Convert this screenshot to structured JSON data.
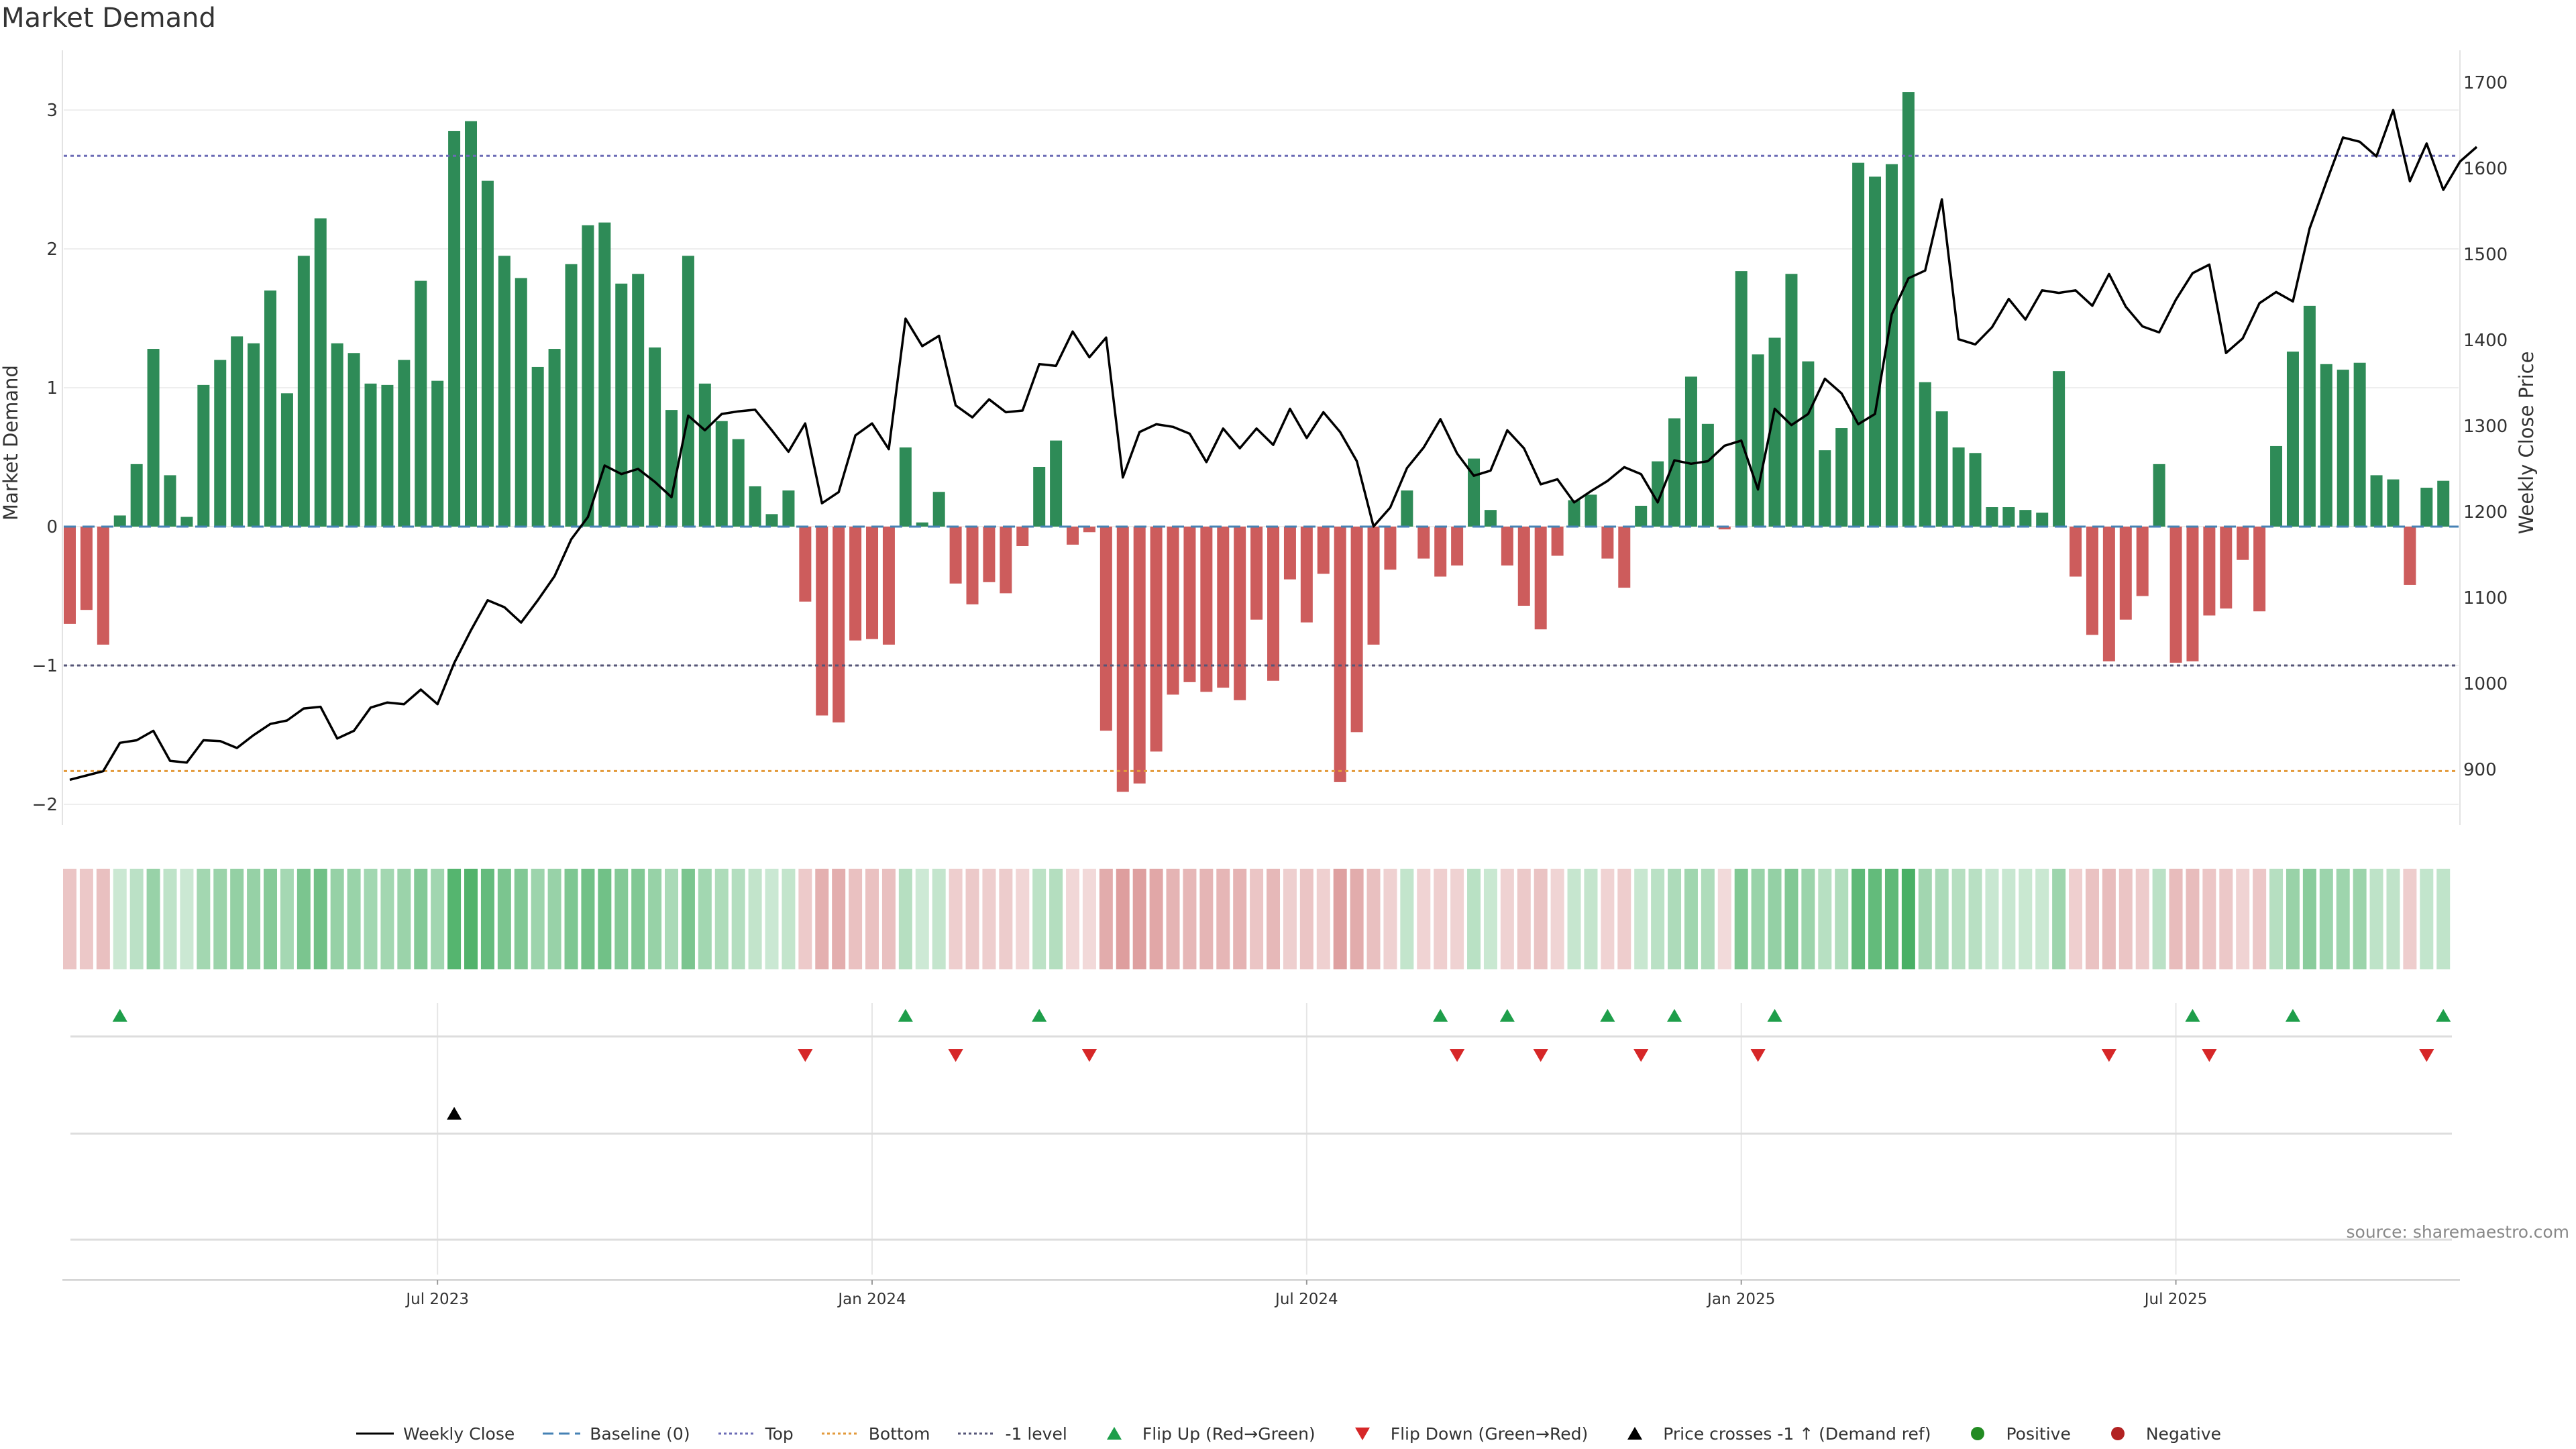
{
  "chart_data": {
    "type": "bar",
    "title": "Market Demand",
    "ylabel": "Market Demand",
    "y2label": "Weekly Close Price",
    "ylim": [
      -2.2,
      3.4
    ],
    "y2lim": [
      850,
      1710
    ],
    "yticks": [
      "3",
      "2",
      "1",
      "0",
      "−1",
      "−2"
    ],
    "yticks_values": [
      3,
      2,
      1,
      0,
      -1,
      -2
    ],
    "y2ticks": [
      "1700",
      "1600",
      "1500",
      "1400",
      "1300",
      "1200",
      "1100",
      "1000",
      "900"
    ],
    "y2ticks_values": [
      1700,
      1600,
      1500,
      1400,
      1300,
      1200,
      1100,
      1000,
      900
    ],
    "xticks": [
      "Jul 2023",
      "Jan 2024",
      "Jul 2024",
      "Jan 2025",
      "Jul 2025"
    ],
    "xticks_index": [
      22,
      48,
      74,
      100,
      126
    ],
    "reference_lines": {
      "top": 2.67,
      "bottom": -1.76,
      "minus_one": -1.0,
      "baseline": 0
    },
    "demand": [
      -0.7,
      -0.6,
      -0.85,
      0.08,
      0.45,
      1.28,
      0.37,
      0.07,
      1.02,
      1.2,
      1.37,
      1.32,
      1.7,
      0.96,
      1.95,
      2.22,
      1.32,
      1.25,
      1.03,
      1.02,
      1.2,
      1.77,
      1.05,
      2.85,
      2.92,
      2.49,
      1.95,
      1.79,
      1.15,
      1.28,
      1.89,
      2.17,
      2.19,
      1.75,
      1.82,
      1.29,
      0.84,
      1.95,
      1.03,
      0.76,
      0.63,
      0.29,
      0.09,
      0.26,
      -0.54,
      -1.36,
      -1.41,
      -0.82,
      -0.81,
      -0.85,
      0.57,
      0.03,
      0.25,
      -0.41,
      -0.56,
      -0.4,
      -0.48,
      -0.14,
      0.43,
      0.62,
      -0.13,
      -0.04,
      -1.47,
      -1.91,
      -1.85,
      -1.62,
      -1.21,
      -1.12,
      -1.19,
      -1.16,
      -1.25,
      -0.67,
      -1.11,
      -0.38,
      -0.69,
      -0.34,
      -1.84,
      -1.48,
      -0.85,
      -0.31,
      0.26,
      -0.23,
      -0.36,
      -0.28,
      0.49,
      0.12,
      -0.28,
      -0.57,
      -0.74,
      -0.21,
      0.19,
      0.23,
      -0.23,
      -0.44,
      0.15,
      0.47,
      0.78,
      1.08,
      0.74,
      -0.02,
      1.84,
      1.24,
      1.36,
      1.82,
      1.19,
      0.55,
      0.71,
      2.62,
      2.52,
      2.61,
      3.13,
      1.04,
      0.83,
      0.57,
      0.53,
      0.14,
      0.14,
      0.12,
      0.1,
      1.12,
      -0.36,
      -0.78,
      -0.97,
      -0.67,
      -0.5,
      0.45,
      -0.98,
      -0.97,
      -0.64,
      -0.59,
      -0.24,
      -0.61,
      0.58,
      1.26,
      1.59,
      1.17,
      1.13,
      1.18,
      0.37,
      0.34,
      -0.42,
      0.28,
      0.33
    ],
    "price": [
      888,
      893,
      898,
      931,
      934,
      945,
      910,
      908,
      934,
      933,
      925,
      940,
      953,
      957,
      971,
      973,
      936,
      945,
      972,
      978,
      976,
      993,
      976,
      1024,
      1062,
      1097,
      1089,
      1071,
      1097,
      1125,
      1168,
      1194,
      1254,
      1244,
      1250,
      1235,
      1217,
      1312,
      1295,
      1314,
      1317,
      1319,
      1295,
      1270,
      1303,
      1210,
      1223,
      1289,
      1303,
      1273,
      1425,
      1393,
      1405,
      1324,
      1310,
      1331,
      1316,
      1318,
      1372,
      1370,
      1410,
      1380,
      1403,
      1240,
      1293,
      1302,
      1299,
      1291,
      1258,
      1297,
      1274,
      1297,
      1278,
      1320,
      1286,
      1316,
      1293,
      1259,
      1183,
      1205,
      1251,
      1275,
      1308,
      1268,
      1242,
      1248,
      1295,
      1274,
      1232,
      1238,
      1211,
      1224,
      1236,
      1252,
      1244,
      1211,
      1260,
      1256,
      1259,
      1277,
      1283,
      1226,
      1320,
      1301,
      1314,
      1355,
      1338,
      1302,
      1314,
      1430,
      1472,
      1481,
      1564,
      1401,
      1395,
      1415,
      1448,
      1424,
      1458,
      1455,
      1458,
      1440,
      1477,
      1439,
      1416,
      1409,
      1447,
      1478,
      1488,
      1385,
      1402,
      1443,
      1456,
      1445,
      1530,
      1584,
      1636,
      1631,
      1614,
      1668,
      1585,
      1629,
      1575,
      1608,
      1625
    ],
    "flip_up_index": [
      3,
      50,
      58,
      82,
      86,
      92,
      96,
      102,
      127,
      133,
      142
    ],
    "flip_down_index": [
      44,
      53,
      61,
      83,
      88,
      94,
      101,
      122,
      128,
      141
    ],
    "price_cross_index": [
      23
    ],
    "legend": [
      "Weekly Close",
      "Baseline (0)",
      "Top",
      "Bottom",
      "-1 level",
      "Flip Up (Red→Green)",
      "Flip Down (Green→Red)",
      "Price crosses -1 ↑ (Demand ref)",
      "Positive",
      "Negative"
    ],
    "source": "source: sharemaestro.com"
  },
  "colors": {
    "positive": "#2e8b57",
    "negative": "#cd5c5c",
    "price_line": "#000000",
    "baseline": "#4682b4",
    "top_line": "#6b6bb5",
    "bottom_line": "#e39a3b",
    "minus_one_line": "#555577",
    "flip_up": "#1e9e4a",
    "flip_down": "#d62728",
    "positive_dot": "#228b22",
    "negative_dot": "#b22222"
  }
}
